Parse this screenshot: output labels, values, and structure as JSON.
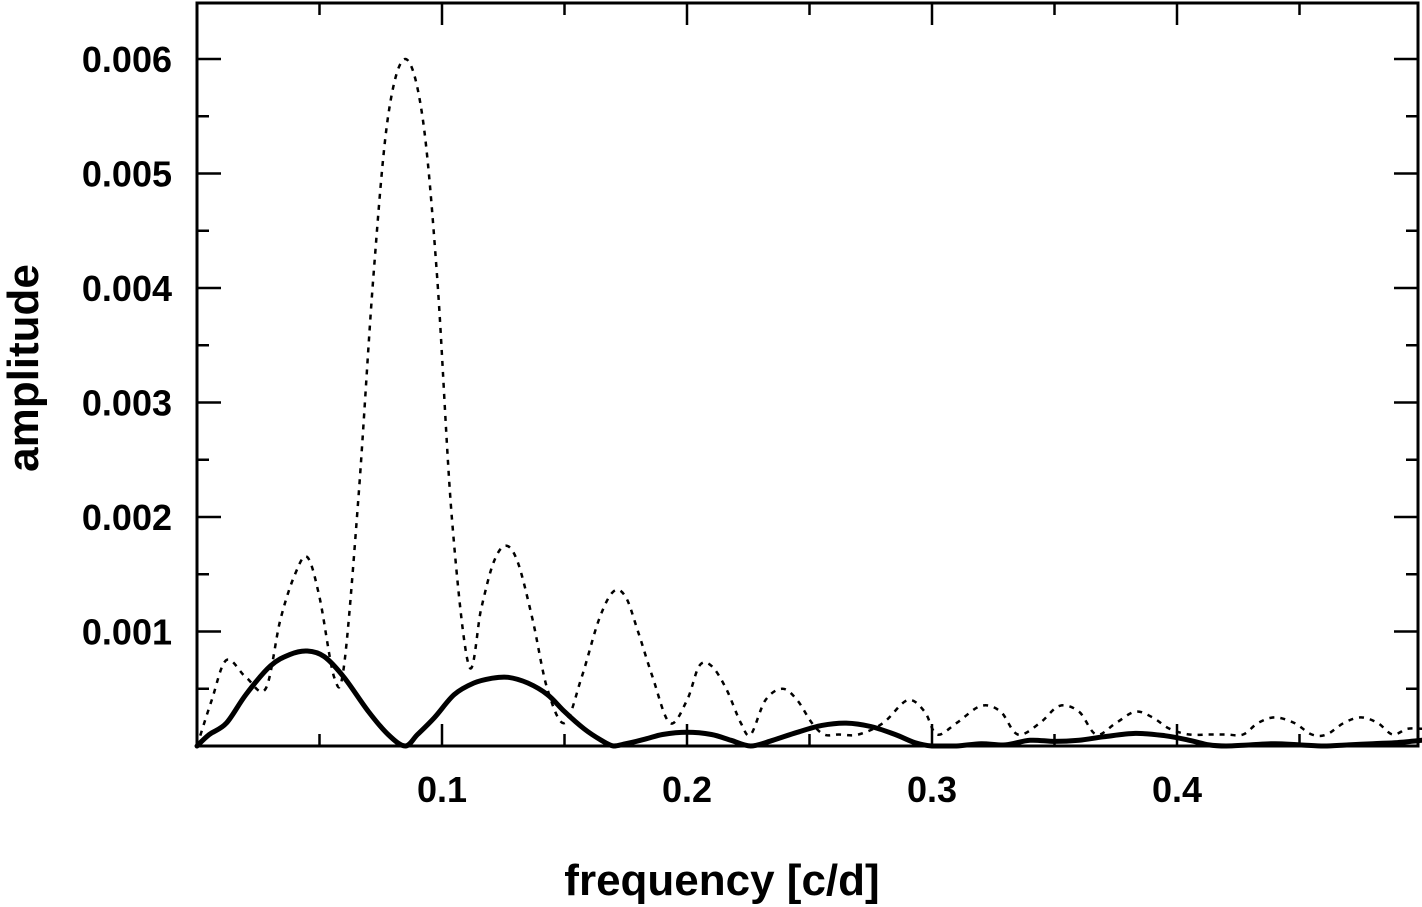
{
  "chart_data": {
    "type": "line",
    "title": "",
    "xlabel": "frequency [c/d]",
    "ylabel": "amplitude",
    "xlim": [
      0.0,
      0.5
    ],
    "ylim": [
      0.0,
      0.0065
    ],
    "x_ticks": [
      {
        "value": 0.1,
        "label": "0.1"
      },
      {
        "value": 0.2,
        "label": "0.2"
      },
      {
        "value": 0.3,
        "label": "0.3"
      },
      {
        "value": 0.4,
        "label": "0.4"
      }
    ],
    "y_ticks": [
      {
        "value": 0.001,
        "label": "0.001"
      },
      {
        "value": 0.002,
        "label": "0.002"
      },
      {
        "value": 0.003,
        "label": "0.003"
      },
      {
        "value": 0.004,
        "label": "0.004"
      },
      {
        "value": 0.005,
        "label": "0.005"
      },
      {
        "value": 0.006,
        "label": "0.006"
      }
    ],
    "grid": false,
    "series": [
      {
        "style": "dotted",
        "x": [
          0.0,
          0.006,
          0.012,
          0.02,
          0.028,
          0.034,
          0.04,
          0.045,
          0.05,
          0.056,
          0.06,
          0.066,
          0.072,
          0.078,
          0.085,
          0.092,
          0.098,
          0.104,
          0.111,
          0.116,
          0.121,
          0.126,
          0.131,
          0.137,
          0.143,
          0.15,
          0.157,
          0.164,
          0.17,
          0.175,
          0.18,
          0.186,
          0.193,
          0.2,
          0.205,
          0.21,
          0.216,
          0.222,
          0.226,
          0.232,
          0.239,
          0.245,
          0.251,
          0.256,
          0.262,
          0.27,
          0.28,
          0.29,
          0.297,
          0.302,
          0.31,
          0.32,
          0.328,
          0.335,
          0.344,
          0.352,
          0.36,
          0.367,
          0.375,
          0.383,
          0.39,
          0.397,
          0.405,
          0.413,
          0.42,
          0.427,
          0.433,
          0.44,
          0.448,
          0.455,
          0.461,
          0.468,
          0.475,
          0.482,
          0.488,
          0.494,
          0.5
        ],
        "y": [
          0.0,
          0.0004,
          0.00075,
          0.0006,
          0.0005,
          0.0011,
          0.0015,
          0.00165,
          0.0013,
          0.0006,
          0.0007,
          0.0022,
          0.0041,
          0.0055,
          0.006,
          0.0055,
          0.0041,
          0.002,
          0.0007,
          0.0012,
          0.0016,
          0.00175,
          0.0016,
          0.0011,
          0.0005,
          0.0002,
          0.0006,
          0.0011,
          0.00135,
          0.0013,
          0.001,
          0.0006,
          0.0002,
          0.0004,
          0.0007,
          0.0007,
          0.0005,
          0.0002,
          0.0001,
          0.0004,
          0.0005,
          0.0004,
          0.0002,
          0.0001,
          0.0001,
          0.0001,
          0.0002,
          0.0004,
          0.0003,
          0.0001,
          0.0002,
          0.00035,
          0.0003,
          0.0001,
          0.0002,
          0.00035,
          0.0003,
          0.0001,
          0.0002,
          0.0003,
          0.00025,
          0.00015,
          0.0001,
          0.0001,
          0.0001,
          0.0001,
          0.0002,
          0.00025,
          0.0002,
          0.0001,
          0.0001,
          0.0002,
          0.00025,
          0.0002,
          0.0001,
          0.00015,
          0.00015
        ]
      },
      {
        "style": "solid",
        "x": [
          0.0,
          0.005,
          0.012,
          0.02,
          0.03,
          0.038,
          0.045,
          0.052,
          0.06,
          0.07,
          0.078,
          0.085,
          0.09,
          0.097,
          0.105,
          0.113,
          0.12,
          0.127,
          0.135,
          0.143,
          0.15,
          0.158,
          0.165,
          0.17,
          0.175,
          0.183,
          0.19,
          0.2,
          0.21,
          0.218,
          0.226,
          0.235,
          0.245,
          0.255,
          0.265,
          0.275,
          0.285,
          0.293,
          0.3,
          0.31,
          0.32,
          0.33,
          0.34,
          0.35,
          0.36,
          0.37,
          0.383,
          0.395,
          0.405,
          0.413,
          0.42,
          0.43,
          0.44,
          0.45,
          0.46,
          0.47,
          0.48,
          0.49,
          0.5
        ],
        "y": [
          0.0,
          0.0001,
          0.0002,
          0.00045,
          0.0007,
          0.0008,
          0.00083,
          0.00078,
          0.0006,
          0.0003,
          0.0001,
          0.0,
          0.0001,
          0.00025,
          0.00045,
          0.00055,
          0.00059,
          0.0006,
          0.00055,
          0.00045,
          0.0003,
          0.00015,
          5e-05,
          0.0,
          2e-05,
          6e-05,
          0.0001,
          0.00012,
          0.0001,
          5e-05,
          0.0,
          5e-05,
          0.00012,
          0.00018,
          0.0002,
          0.00017,
          0.0001,
          3e-05,
          0.0,
          0.0,
          2e-05,
          1e-05,
          5e-05,
          4e-05,
          5e-05,
          8e-05,
          0.00011,
          9e-05,
          5e-05,
          1e-05,
          0.0,
          1e-05,
          2e-05,
          1e-05,
          0.0,
          1e-05,
          2e-05,
          3e-05,
          5e-05
        ]
      }
    ]
  }
}
